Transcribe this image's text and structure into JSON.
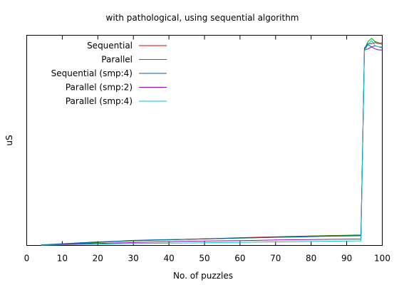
{
  "chart_data": {
    "type": "line",
    "title": "with pathological, using sequential algorithm",
    "xlabel": "No. of puzzles",
    "ylabel": "uS",
    "xlim": [
      0,
      100
    ],
    "ylim": [
      0,
      100
    ],
    "x_ticks": [
      0,
      10,
      20,
      30,
      40,
      50,
      60,
      70,
      80,
      90,
      100
    ],
    "y_ticks_labeled": false,
    "grid": false,
    "legend_position": "top-left",
    "x": [
      4,
      10,
      15,
      20,
      25,
      30,
      35,
      40,
      45,
      50,
      55,
      60,
      65,
      70,
      75,
      80,
      85,
      90,
      94,
      95,
      96,
      97,
      98,
      99,
      100
    ],
    "series": [
      {
        "name": "Sequential",
        "color": "#cc0000",
        "values": [
          0.2,
          0.6,
          1.0,
          1.4,
          1.9,
          2.2,
          2.5,
          2.7,
          2.9,
          3.2,
          3.4,
          3.7,
          3.9,
          4.1,
          4.3,
          4.5,
          4.7,
          4.8,
          5.0,
          93.5,
          96.0,
          96.0,
          96.5,
          96.0,
          96.5
        ]
      },
      {
        "name": "Parallel",
        "color": "#00a000",
        "values": [
          0.2,
          0.5,
          1.0,
          1.5,
          1.9,
          2.2,
          2.4,
          2.6,
          2.9,
          3.1,
          3.3,
          3.5,
          3.7,
          3.9,
          4.2,
          4.5,
          4.6,
          4.7,
          4.9,
          93.5,
          97.0,
          98.5,
          97.0,
          96.5,
          95.5
        ]
      },
      {
        "name": "Sequential (smp:4)",
        "color": "#0060b0",
        "values": [
          0.3,
          0.8,
          1.3,
          1.7,
          2.0,
          2.4,
          2.6,
          2.8,
          2.9,
          3.1,
          3.3,
          3.6,
          3.7,
          3.9,
          4.0,
          4.2,
          4.4,
          4.5,
          4.6,
          94.0,
          95.5,
          94.5,
          95.0,
          94.5,
          94.0
        ]
      },
      {
        "name": "Parallel (smp:2)",
        "color": "#9400d3",
        "values": [
          0.1,
          0.4,
          0.7,
          0.9,
          1.2,
          1.4,
          1.6,
          1.8,
          2.0,
          2.1,
          2.2,
          2.3,
          2.4,
          2.6,
          2.7,
          2.8,
          2.9,
          3.0,
          3.1,
          93.0,
          93.5,
          94.5,
          93.5,
          93.0,
          93.0
        ]
      },
      {
        "name": "Parallel (smp:4)",
        "color": "#00c8c8",
        "values": [
          0.1,
          0.3,
          0.5,
          0.6,
          0.8,
          0.9,
          1.0,
          1.1,
          1.2,
          1.3,
          1.4,
          1.5,
          1.6,
          1.7,
          1.8,
          1.9,
          2.0,
          2.1,
          2.2,
          92.5,
          95.5,
          97.5,
          95.0,
          94.5,
          94.5
        ]
      }
    ]
  }
}
